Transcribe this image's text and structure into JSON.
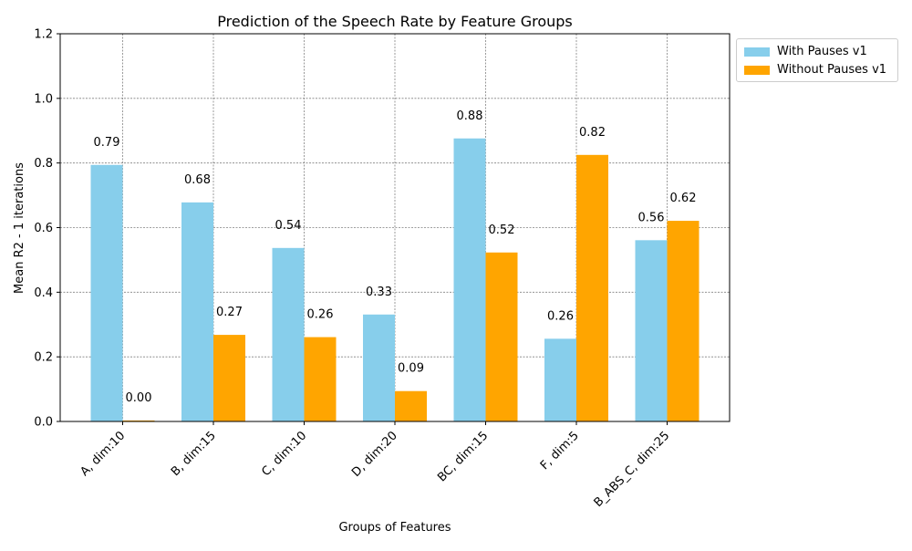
{
  "chart_data": {
    "type": "bar",
    "title": "Prediction of the Speech Rate by Feature Groups",
    "xlabel": "Groups of Features",
    "ylabel": "Mean R2 - 1 iterations",
    "categories": [
      "A, dim:10",
      "B, dim:15",
      "C, dim:10",
      "D, dim:20",
      "BC, dim:15",
      "F, dim:5",
      "B_ABS_C, dim:25"
    ],
    "series": [
      {
        "name": "With Pauses v1",
        "color": "#87ceeb",
        "values": [
          0.794,
          0.678,
          0.537,
          0.331,
          0.876,
          0.256,
          0.561
        ],
        "labels": [
          "0.79",
          "0.68",
          "0.54",
          "0.33",
          "0.88",
          "0.26",
          "0.56"
        ]
      },
      {
        "name": "Without Pauses v1",
        "color": "#ffa500",
        "values": [
          0.003,
          0.268,
          0.261,
          0.094,
          0.523,
          0.825,
          0.621
        ],
        "labels": [
          "0.00",
          "0.27",
          "0.26",
          "0.09",
          "0.52",
          "0.82",
          "0.62"
        ]
      }
    ],
    "ylim": [
      0,
      1.2
    ],
    "yticks": [
      "0.0",
      "0.2",
      "0.4",
      "0.6",
      "0.8",
      "1.0",
      "1.2"
    ],
    "grid": true,
    "legend_position": "outside-top-right"
  }
}
